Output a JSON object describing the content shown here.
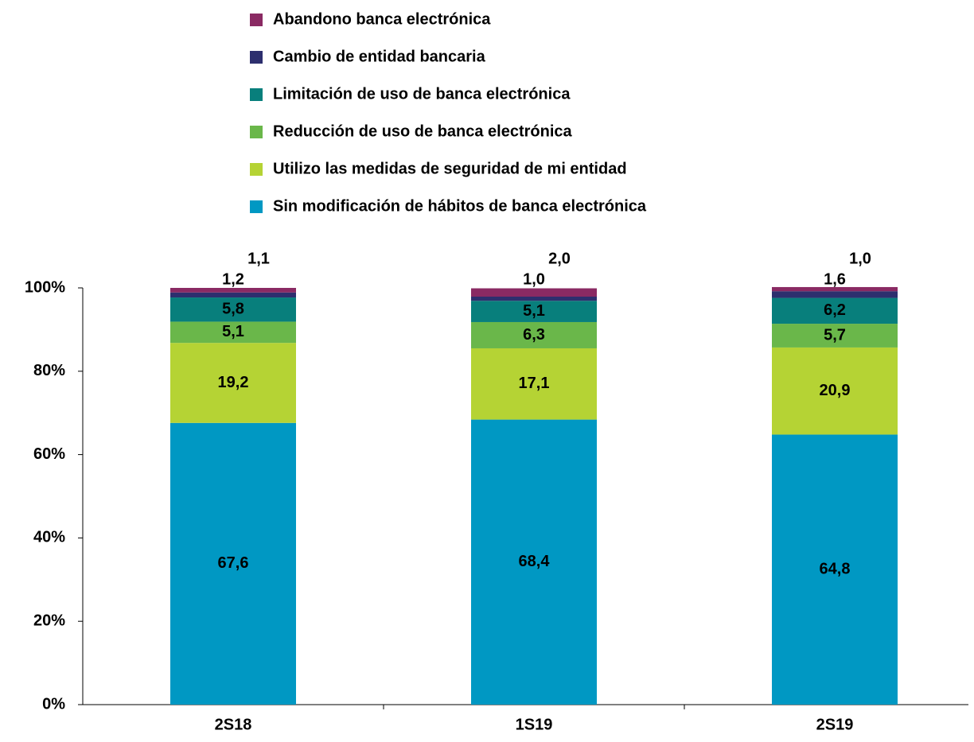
{
  "chart_data": {
    "type": "stacked_bar",
    "categories": [
      "2S18",
      "1S19",
      "2S19"
    ],
    "series": [
      {
        "name": "Sin modificación de hábitos de banca electrónica",
        "color": "#0098c3",
        "values": [
          67.6,
          68.4,
          64.8
        ],
        "value_labels": [
          "67,6",
          "68,4",
          "64,8"
        ]
      },
      {
        "name": "Utilizo las medidas de seguridad de mi entidad",
        "color": "#b5d334",
        "values": [
          19.2,
          17.1,
          20.9
        ],
        "value_labels": [
          "19,2",
          "17,1",
          "20,9"
        ]
      },
      {
        "name": "Reducción de uso de banca electrónica",
        "color": "#6ab74a",
        "values": [
          5.1,
          6.3,
          5.7
        ],
        "value_labels": [
          "5,1",
          "6,3",
          "5,7"
        ]
      },
      {
        "name": "Limitación de uso de banca electrónica",
        "color": "#087f7c",
        "values": [
          5.8,
          5.1,
          6.2
        ],
        "value_labels": [
          "5,8",
          "5,1",
          "6,2"
        ]
      },
      {
        "name": "Cambio de entidad bancaria",
        "color": "#2d2f6e",
        "values": [
          1.2,
          1.0,
          1.6
        ],
        "value_labels": [
          "1,2",
          "1,0",
          "1,6"
        ]
      },
      {
        "name": "Abandono banca electrónica",
        "color": "#8a2a63",
        "values": [
          1.1,
          2.0,
          1.0
        ],
        "value_labels": [
          "1,1",
          "2,0",
          "1,0"
        ]
      }
    ],
    "ylim": [
      0,
      100
    ],
    "yticks": [
      {
        "value": 0,
        "label": "0%"
      },
      {
        "value": 20,
        "label": "20%"
      },
      {
        "value": 40,
        "label": "40%"
      },
      {
        "value": 60,
        "label": "60%"
      },
      {
        "value": 80,
        "label": "80%"
      },
      {
        "value": 100,
        "label": "100%"
      }
    ],
    "legend": "top"
  }
}
